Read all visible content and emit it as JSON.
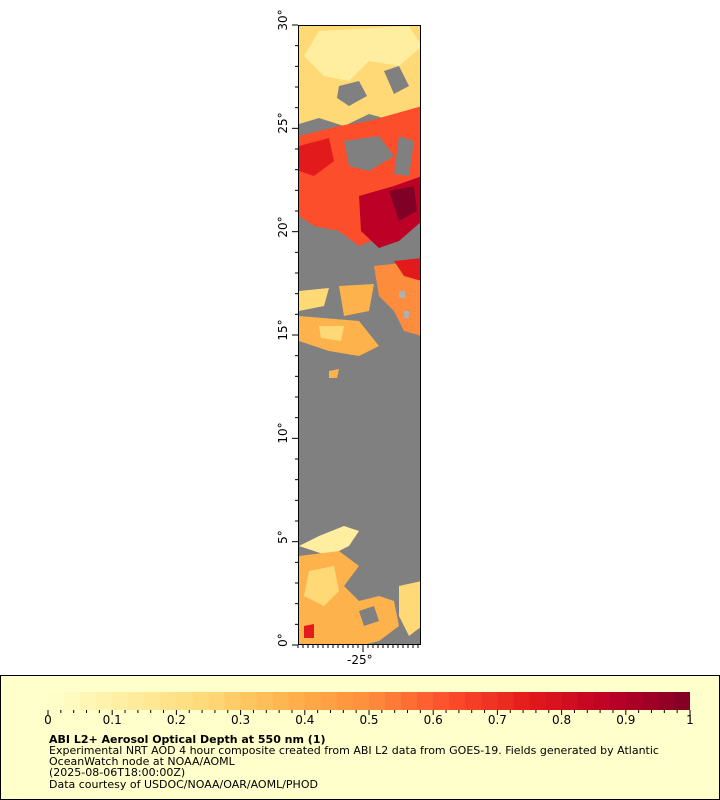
{
  "map": {
    "lat_ticks": [
      {
        "label": "0°",
        "value": 0
      },
      {
        "label": "5°",
        "value": 5
      },
      {
        "label": "10°",
        "value": 10
      },
      {
        "label": "15°",
        "value": 15
      },
      {
        "label": "20°",
        "value": 20
      },
      {
        "label": "25°",
        "value": 25
      },
      {
        "label": "30°",
        "value": 30
      }
    ],
    "lon_ticks": [
      {
        "label": "-25°",
        "value": -25
      }
    ],
    "lat_range": [
      0,
      30
    ],
    "background_color": "#808080",
    "land_color": "#b0b0b0"
  },
  "legend": {
    "colorbar_ticks": [
      "0",
      "0.1",
      "0.2",
      "0.3",
      "0.4",
      "0.5",
      "0.6",
      "0.7",
      "0.8",
      "0.9",
      "1"
    ],
    "colormap": [
      "#ffffcc",
      "#ffeda0",
      "#fed976",
      "#feb24c",
      "#fd8d3c",
      "#fc4e2a",
      "#e31a1c",
      "#bd0026",
      "#800026"
    ],
    "title": "ABI L2+ Aerosol Optical Depth at 550 nm (1)",
    "line1": "Experimental NRT AOD 4 hour composite created from ABI L2 data from GOES-19. Fields generated by Atlantic",
    "line2": "OceanWatch node at NOAA/AOML",
    "line3": "(2025-08-06T18:00:00Z)",
    "line4": "Data courtesy of USDOC/NOAA/OAR/AOML/PHOD"
  }
}
